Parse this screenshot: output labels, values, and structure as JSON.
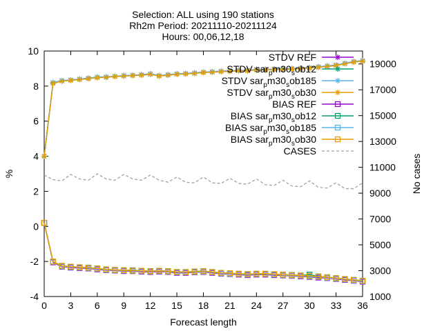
{
  "chart_data": {
    "type": "line",
    "title_lines": [
      "Selection: ALL using    190 stations",
      "Rh2m   Period: 20211110-20211124",
      "Hours: 00,06,12,18"
    ],
    "xlabel": "Forecast length",
    "ylabel": "%",
    "y2label": "No cases",
    "xlim": [
      0,
      36
    ],
    "ylim": [
      -4,
      10
    ],
    "y2lim": [
      1000,
      20000
    ],
    "x_ticks": [
      0,
      3,
      6,
      9,
      12,
      15,
      18,
      21,
      24,
      27,
      30,
      33,
      36
    ],
    "y_ticks": [
      -4,
      -2,
      0,
      2,
      4,
      6,
      8,
      10
    ],
    "y2_ticks": [
      1000,
      3000,
      5000,
      7000,
      9000,
      11000,
      13000,
      15000,
      17000,
      19000
    ],
    "grid": false,
    "legend_position": "top-right",
    "x": [
      0,
      1,
      2,
      3,
      4,
      5,
      6,
      7,
      8,
      9,
      10,
      11,
      12,
      13,
      14,
      15,
      16,
      17,
      18,
      19,
      20,
      21,
      22,
      23,
      24,
      25,
      26,
      27,
      28,
      29,
      30,
      31,
      32,
      33,
      34,
      35,
      36
    ],
    "series": [
      {
        "name": "STDV REF",
        "legend_parts": [
          "STDV REF"
        ],
        "color": "#9400d3",
        "marker": "asterisk",
        "axis": "y1",
        "values": [
          4.0,
          8.2,
          8.3,
          8.35,
          8.4,
          8.45,
          8.5,
          8.52,
          8.55,
          8.6,
          8.62,
          8.65,
          8.7,
          8.6,
          8.65,
          8.7,
          8.72,
          8.75,
          8.8,
          8.82,
          8.85,
          8.87,
          8.9,
          8.9,
          8.95,
          8.95,
          8.97,
          8.98,
          9.0,
          9.02,
          9.05,
          9.1,
          9.15,
          9.2,
          9.3,
          9.4,
          9.45
        ]
      },
      {
        "name": "STDV sar_pm30_sob12",
        "legend_parts": [
          "STDV sar",
          "p",
          "m30",
          "s",
          "ob12"
        ],
        "color": "#009e73",
        "marker": "asterisk",
        "axis": "y1",
        "values": [
          4.0,
          8.18,
          8.3,
          8.33,
          8.38,
          8.43,
          8.5,
          8.5,
          8.55,
          8.58,
          8.6,
          8.63,
          8.68,
          8.58,
          8.63,
          8.68,
          8.7,
          8.73,
          8.78,
          8.8,
          8.83,
          8.85,
          8.88,
          8.88,
          8.93,
          8.93,
          8.95,
          8.96,
          8.98,
          9.0,
          9.03,
          9.08,
          9.13,
          9.18,
          9.28,
          9.38,
          9.43
        ]
      },
      {
        "name": "STDV sar_pm30_sob185",
        "legend_parts": [
          "STDV sar",
          "p",
          "m30",
          "s",
          "ob185"
        ],
        "color": "#56b4e9",
        "marker": "asterisk",
        "axis": "y1",
        "values": [
          4.0,
          8.2,
          8.32,
          8.35,
          8.4,
          8.45,
          8.52,
          8.53,
          8.57,
          8.6,
          8.62,
          8.65,
          8.7,
          8.6,
          8.65,
          8.7,
          8.72,
          8.75,
          8.8,
          8.82,
          8.85,
          8.87,
          8.9,
          8.9,
          8.95,
          8.95,
          8.97,
          8.98,
          9.0,
          9.02,
          9.05,
          9.1,
          9.15,
          9.2,
          9.3,
          9.4,
          9.45
        ]
      },
      {
        "name": "STDV sar_pm30_sob30",
        "legend_parts": [
          "STDV sar",
          "p",
          "m30",
          "s",
          "ob30"
        ],
        "color": "#e69f00",
        "marker": "asterisk",
        "axis": "y1",
        "values": [
          4.0,
          8.15,
          8.28,
          8.32,
          8.37,
          8.42,
          8.48,
          8.5,
          8.54,
          8.57,
          8.6,
          8.62,
          8.67,
          8.57,
          8.62,
          8.67,
          8.69,
          8.72,
          8.77,
          8.79,
          8.82,
          8.84,
          8.87,
          8.87,
          8.92,
          8.92,
          8.94,
          8.95,
          8.97,
          8.99,
          9.02,
          9.07,
          9.12,
          9.17,
          9.27,
          9.37,
          9.42
        ]
      },
      {
        "name": "BIAS REF",
        "legend_parts": [
          "BIAS REF"
        ],
        "color": "#9400d3",
        "marker": "open-square",
        "axis": "y1",
        "values": [
          0.2,
          -2.05,
          -2.3,
          -2.35,
          -2.38,
          -2.4,
          -2.45,
          -2.5,
          -2.52,
          -2.55,
          -2.55,
          -2.58,
          -2.6,
          -2.58,
          -2.6,
          -2.65,
          -2.65,
          -2.62,
          -2.6,
          -2.65,
          -2.7,
          -2.72,
          -2.75,
          -2.78,
          -2.75,
          -2.75,
          -2.78,
          -2.8,
          -2.82,
          -2.85,
          -2.88,
          -2.92,
          -2.95,
          -3.0,
          -3.05,
          -3.1,
          -3.15
        ]
      },
      {
        "name": "BIAS sar_pm30_sob12",
        "legend_parts": [
          "BIAS sar",
          "p",
          "m30",
          "s",
          "ob12"
        ],
        "color": "#009e73",
        "marker": "open-square",
        "axis": "y1",
        "values": [
          0.2,
          -2.0,
          -2.25,
          -2.3,
          -2.33,
          -2.35,
          -2.4,
          -2.45,
          -2.48,
          -2.5,
          -2.5,
          -2.53,
          -2.55,
          -2.53,
          -2.55,
          -2.6,
          -2.6,
          -2.57,
          -2.55,
          -2.6,
          -2.65,
          -2.67,
          -2.7,
          -2.72,
          -2.7,
          -2.7,
          -2.73,
          -2.75,
          -2.77,
          -2.8,
          -2.75,
          -2.85,
          -2.9,
          -2.95,
          -3.0,
          -3.05,
          -3.1
        ]
      },
      {
        "name": "BIAS sar_pm30_sob185",
        "legend_parts": [
          "BIAS sar",
          "p",
          "m30",
          "s",
          "ob185"
        ],
        "color": "#56b4e9",
        "marker": "open-square",
        "axis": "y1",
        "values": [
          0.2,
          -2.02,
          -2.28,
          -2.32,
          -2.35,
          -2.38,
          -2.42,
          -2.48,
          -2.5,
          -2.52,
          -2.53,
          -2.55,
          -2.57,
          -2.55,
          -2.58,
          -2.62,
          -2.62,
          -2.6,
          -2.58,
          -2.62,
          -2.68,
          -2.7,
          -2.72,
          -2.75,
          -2.72,
          -2.72,
          -2.75,
          -2.78,
          -2.8,
          -2.82,
          -2.85,
          -2.88,
          -2.93,
          -2.98,
          -3.02,
          -3.08,
          -3.12
        ]
      },
      {
        "name": "BIAS sar_pm30_sob30",
        "legend_parts": [
          "BIAS sar",
          "p",
          "m30",
          "s",
          "ob30"
        ],
        "color": "#e69f00",
        "marker": "open-square",
        "axis": "y1",
        "values": [
          0.2,
          -2.0,
          -2.25,
          -2.3,
          -2.33,
          -2.36,
          -2.4,
          -2.45,
          -2.48,
          -2.5,
          -2.52,
          -2.53,
          -2.56,
          -2.54,
          -2.56,
          -2.6,
          -2.6,
          -2.58,
          -2.56,
          -2.6,
          -2.65,
          -2.67,
          -2.7,
          -2.72,
          -2.7,
          -2.7,
          -2.72,
          -2.75,
          -2.78,
          -2.8,
          -2.82,
          -2.86,
          -2.9,
          -2.95,
          -3.0,
          -3.05,
          -3.1
        ]
      },
      {
        "name": "CASES",
        "legend_parts": [
          "CASES"
        ],
        "color": "#a0a0a0",
        "marker": "none",
        "dashed": true,
        "axis": "y2",
        "values": [
          10400,
          10050,
          9950,
          10450,
          10100,
          10000,
          10500,
          10100,
          10000,
          10450,
          10100,
          10000,
          10400,
          10000,
          9850,
          10250,
          9850,
          9800,
          10250,
          9800,
          9750,
          10150,
          9750,
          9700,
          10100,
          9650,
          9600,
          10000,
          9550,
          9500,
          9950,
          9450,
          9400,
          9800,
          9350,
          9350,
          9800
        ]
      }
    ]
  }
}
